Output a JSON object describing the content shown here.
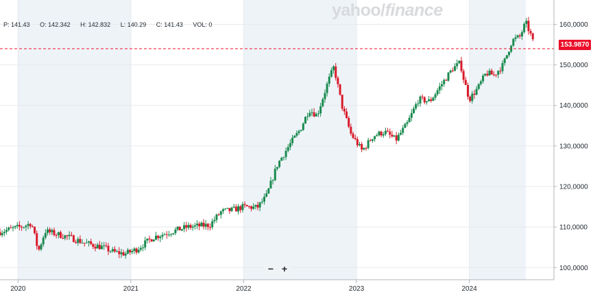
{
  "watermark": {
    "brand": "yahoo",
    "slash": "/",
    "product": "finance"
  },
  "ohlc_bar": {
    "items": [
      {
        "key": "P",
        "label": "P: ",
        "value": "141.43"
      },
      {
        "key": "O",
        "label": "O: ",
        "value": "142.342"
      },
      {
        "key": "H",
        "label": "H: ",
        "value": "142.832"
      },
      {
        "key": "L",
        "label": "L: ",
        "value": "140.29"
      },
      {
        "key": "C",
        "label": "C: ",
        "value": "141.43"
      },
      {
        "key": "VOL",
        "label": "VOL: ",
        "value": "0"
      }
    ]
  },
  "current_price": {
    "label": "153.9870",
    "value": 153.987,
    "color": "#eb0f29"
  },
  "zoom": {
    "minus": "−",
    "plus": "+"
  },
  "colors": {
    "up": "#1a8a4f",
    "down": "#d91a2a",
    "shade": "#eef3f8",
    "grid": "#e6e9ec"
  },
  "chart_data": {
    "type": "candlestick",
    "title": "",
    "xlabel": "",
    "ylabel": "",
    "ylim": [
      97,
      166
    ],
    "xlim": [
      2019.84,
      2024.75
    ],
    "grid": true,
    "y_ticks": [
      {
        "value": 100,
        "label": "100,0000"
      },
      {
        "value": 110,
        "label": "110,0000"
      },
      {
        "value": 120,
        "label": "120,0000"
      },
      {
        "value": 130,
        "label": "130,0000"
      },
      {
        "value": 140,
        "label": "140,0000"
      },
      {
        "value": 150,
        "label": "150,0000"
      },
      {
        "value": 160,
        "label": "160,0000"
      }
    ],
    "x_ticks": [
      {
        "value": 2020,
        "label": "2020"
      },
      {
        "value": 2021,
        "label": "2021"
      },
      {
        "value": 2022,
        "label": "2022"
      },
      {
        "value": 2023,
        "label": "2023"
      },
      {
        "value": 2024,
        "label": "2024"
      }
    ],
    "shaded_years": [
      [
        2020,
        2021
      ],
      [
        2022,
        2023
      ],
      [
        2024,
        2024.5
      ]
    ],
    "close_path": [
      [
        2019.84,
        108.8
      ],
      [
        2019.95,
        109.6
      ],
      [
        2020.05,
        110.2
      ],
      [
        2020.12,
        111.0
      ],
      [
        2020.18,
        104.0
      ],
      [
        2020.24,
        109.0
      ],
      [
        2020.35,
        108.2
      ],
      [
        2020.45,
        107.5
      ],
      [
        2020.6,
        106.0
      ],
      [
        2020.75,
        105.0
      ],
      [
        2020.85,
        103.8
      ],
      [
        2020.95,
        103.4
      ],
      [
        2021.05,
        104.5
      ],
      [
        2021.2,
        107.5
      ],
      [
        2021.35,
        108.8
      ],
      [
        2021.5,
        110.0
      ],
      [
        2021.7,
        110.5
      ],
      [
        2021.8,
        113.8
      ],
      [
        2021.9,
        114.2
      ],
      [
        2022.0,
        115.0
      ],
      [
        2022.12,
        114.8
      ],
      [
        2022.2,
        117.5
      ],
      [
        2022.3,
        125.5
      ],
      [
        2022.4,
        130.0
      ],
      [
        2022.5,
        134.0
      ],
      [
        2022.58,
        139.0
      ],
      [
        2022.65,
        137.5
      ],
      [
        2022.75,
        146.0
      ],
      [
        2022.8,
        149.5
      ],
      [
        2022.87,
        140.0
      ],
      [
        2022.95,
        133.0
      ],
      [
        2023.05,
        128.8
      ],
      [
        2023.15,
        132.5
      ],
      [
        2023.25,
        133.5
      ],
      [
        2023.35,
        131.5
      ],
      [
        2023.45,
        135.5
      ],
      [
        2023.55,
        141.5
      ],
      [
        2023.65,
        141.0
      ],
      [
        2023.75,
        145.0
      ],
      [
        2023.85,
        149.0
      ],
      [
        2023.92,
        150.5
      ],
      [
        2023.95,
        146.5
      ],
      [
        2024.0,
        141.5
      ],
      [
        2024.08,
        144.5
      ],
      [
        2024.15,
        148.0
      ],
      [
        2024.22,
        147.5
      ],
      [
        2024.3,
        150.0
      ],
      [
        2024.38,
        156.0
      ],
      [
        2024.45,
        157.0
      ],
      [
        2024.5,
        160.5
      ],
      [
        2024.55,
        157.0
      ],
      [
        2024.58,
        154.0
      ]
    ]
  }
}
